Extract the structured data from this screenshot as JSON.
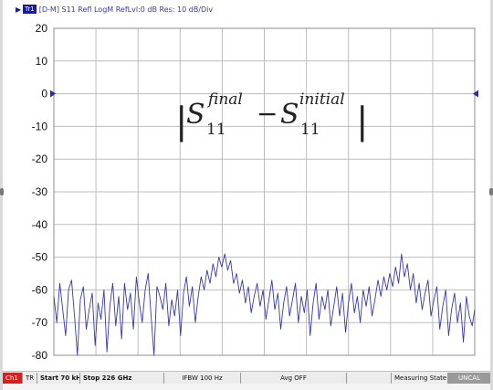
{
  "header": {
    "pointer_glyph": "▶",
    "trace_badge": "Tr1",
    "trace_label": "[D-M] S11 Refl LogM RefLvl:0 dB Res: 10 dB/Div"
  },
  "status_bar": {
    "channel": "Ch1",
    "trace": "TR",
    "start": "Start 70 kHz",
    "stop": "Stop 226 GHz",
    "ifbw": "IFBW 100 Hz",
    "avg": "Avg OFF",
    "state": "Measuring State",
    "uncal": "UNCAL"
  },
  "colors": {
    "trace": "#3838a8",
    "grid": "#bdbdbd",
    "marker": "#2a2aa8",
    "status_channel": "#d42020"
  },
  "icons": {
    "ref_marker_left": "triangle-right-icon",
    "ref_marker_right": "triangle-left-icon"
  },
  "chart_data": {
    "type": "line",
    "title": "",
    "xlabel": "",
    "ylabel": "",
    "annotation": {
      "bar_left": "|",
      "s_left": "S",
      "sup_left": "final",
      "sub_left": "11",
      "minus": "−",
      "s_right": "S",
      "sup_right": "initial",
      "sub_right": "11",
      "bar_right": "|"
    },
    "ylim": [
      -80,
      20
    ],
    "yticks": [
      20,
      10,
      0,
      -10,
      -20,
      -30,
      -40,
      -50,
      -60,
      -70,
      -80
    ],
    "ytick_labels": [
      "20",
      "10",
      "0",
      "-10",
      "-20",
      "-30",
      "-40",
      "-50",
      "-60",
      "-70",
      "-80"
    ],
    "xlim": [
      0,
      10
    ],
    "x_divisions": 10,
    "grid": true,
    "reference_level": 0,
    "series": [
      {
        "x": [
          0.0,
          0.07,
          0.14,
          0.21,
          0.28,
          0.35,
          0.42,
          0.49,
          0.56,
          0.63,
          0.7,
          0.77,
          0.84,
          0.91,
          0.98,
          1.05,
          1.12,
          1.19,
          1.26,
          1.33,
          1.4,
          1.47,
          1.54,
          1.61,
          1.68,
          1.75,
          1.82,
          1.89,
          1.96,
          2.03,
          2.1,
          2.17,
          2.24,
          2.31,
          2.38,
          2.45,
          2.52,
          2.59,
          2.66,
          2.73,
          2.8,
          2.87,
          2.94,
          3.01,
          3.08,
          3.15,
          3.22,
          3.29,
          3.36,
          3.43,
          3.5,
          3.57,
          3.64,
          3.71,
          3.78,
          3.85,
          3.92,
          3.99,
          4.06,
          4.13,
          4.2,
          4.27,
          4.34,
          4.41,
          4.48,
          4.55,
          4.62,
          4.69,
          4.76,
          4.83,
          4.9,
          4.97,
          5.04,
          5.11,
          5.18,
          5.25,
          5.32,
          5.39,
          5.46,
          5.53,
          5.6,
          5.67,
          5.74,
          5.81,
          5.88,
          5.95,
          6.02,
          6.09,
          6.16,
          6.23,
          6.3,
          6.37,
          6.44,
          6.51,
          6.58,
          6.65,
          6.72,
          6.79,
          6.86,
          6.93,
          7.0,
          7.07,
          7.14,
          7.21,
          7.28,
          7.35,
          7.42,
          7.49,
          7.56,
          7.63,
          7.7,
          7.77,
          7.84,
          7.91,
          7.98,
          8.05,
          8.12,
          8.19,
          8.26,
          8.33,
          8.4,
          8.47,
          8.54,
          8.61,
          8.68,
          8.75,
          8.82,
          8.89,
          8.96,
          9.03,
          9.1,
          9.17,
          9.24,
          9.31,
          9.38,
          9.45,
          9.52,
          9.59,
          9.66,
          9.73,
          9.8,
          9.87,
          9.94,
          10.0
        ],
        "y": [
          -62,
          -70,
          -58,
          -66,
          -74,
          -60,
          -57,
          -68,
          -80,
          -63,
          -59,
          -72,
          -66,
          -61,
          -77,
          -64,
          -69,
          -60,
          -79,
          -65,
          -58,
          -71,
          -62,
          -75,
          -58,
          -66,
          -61,
          -72,
          -56,
          -64,
          -70,
          -60,
          -55,
          -68,
          -80,
          -59,
          -62,
          -66,
          -58,
          -71,
          -63,
          -68,
          -60,
          -74,
          -61,
          -56,
          -65,
          -59,
          -70,
          -62,
          -56,
          -60,
          -54,
          -58,
          -52,
          -56,
          -50,
          -53,
          -49,
          -54,
          -51,
          -58,
          -55,
          -61,
          -57,
          -64,
          -59,
          -67,
          -62,
          -58,
          -65,
          -60,
          -69,
          -63,
          -57,
          -66,
          -61,
          -72,
          -64,
          -59,
          -68,
          -63,
          -58,
          -70,
          -62,
          -67,
          -60,
          -74,
          -64,
          -58,
          -69,
          -62,
          -66,
          -60,
          -71,
          -65,
          -59,
          -68,
          -61,
          -73,
          -64,
          -58,
          -67,
          -62,
          -70,
          -60,
          -65,
          -59,
          -68,
          -63,
          -57,
          -62,
          -56,
          -60,
          -55,
          -59,
          -53,
          -58,
          -49,
          -56,
          -52,
          -60,
          -55,
          -64,
          -58,
          -66,
          -61,
          -57,
          -68,
          -63,
          -59,
          -72,
          -65,
          -60,
          -74,
          -66,
          -61,
          -70,
          -64,
          -76,
          -62,
          -68,
          -71,
          -66
        ]
      }
    ]
  }
}
